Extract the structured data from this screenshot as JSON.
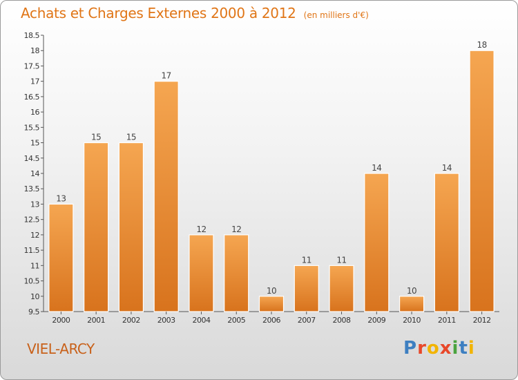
{
  "header": {
    "title": "Achats et Charges Externes 2000 à 2012",
    "unit": "(en milliers d'€)"
  },
  "footer": {
    "city": "VIEL-ARCY",
    "brand": "Proxiti",
    "brand_colors": [
      "#3d7fc1",
      "#e8482a",
      "#f2b400",
      "#e8482a",
      "#4aa33f",
      "#3d7fc1",
      "#f2b400"
    ]
  },
  "colors": {
    "bar_top": "#f5a651",
    "bar_bottom": "#d8731d",
    "title": "#e07516"
  },
  "chart_data": {
    "type": "bar",
    "categories": [
      "2000",
      "2001",
      "2002",
      "2003",
      "2004",
      "2005",
      "2006",
      "2007",
      "2008",
      "2009",
      "2010",
      "2011",
      "2012"
    ],
    "values": [
      13,
      15,
      15,
      17,
      12,
      12,
      10,
      11,
      11,
      14,
      10,
      14,
      18
    ],
    "value_labels": [
      "13",
      "15",
      "15",
      "17",
      "12",
      "12",
      "10",
      "11",
      "11",
      "14",
      "10",
      "14",
      "18"
    ],
    "ylim": [
      9.5,
      18.5
    ],
    "yticks": [
      9.5,
      10,
      10.5,
      11,
      11.5,
      12,
      12.5,
      13,
      13.5,
      14,
      14.5,
      15,
      15.5,
      16,
      16.5,
      17,
      17.5,
      18,
      18.5
    ],
    "ytick_labels": [
      "9.5",
      "10",
      "10.5",
      "11",
      "11.5",
      "12",
      "12.5",
      "13",
      "13.5",
      "14",
      "14.5",
      "15",
      "15.5",
      "16",
      "16.5",
      "17",
      "17.5",
      "18",
      "18.5"
    ],
    "grid": false,
    "legend": "none"
  }
}
